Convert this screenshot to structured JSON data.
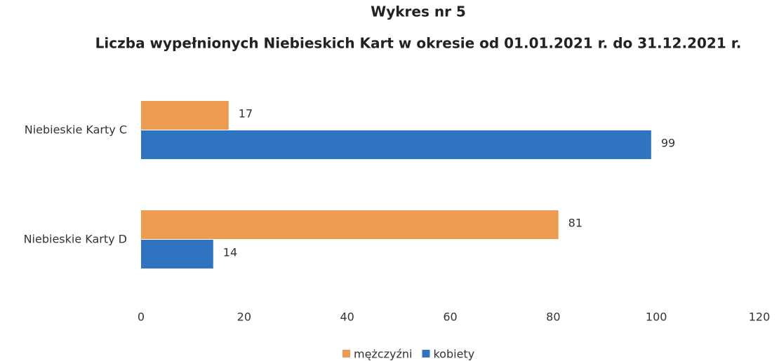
{
  "chart_data": {
    "type": "bar",
    "orientation": "horizontal",
    "title": "Wykres nr 5",
    "subtitle": "Liczba wypełnionych Niebieskich Kart w okresie od 01.01.2021 r. do 31.12.2021 r.",
    "categories": [
      "Niebieskie Karty C",
      "Niebieskie Karty D"
    ],
    "series": [
      {
        "name": "mężczyźni",
        "color": "#ed9b4f",
        "values": [
          17,
          81
        ]
      },
      {
        "name": "kobiety",
        "color": "#2e74c0",
        "values": [
          99,
          14
        ]
      }
    ],
    "xlim": [
      0,
      120
    ],
    "xticks": [
      0,
      20,
      40,
      60,
      80,
      100,
      120
    ],
    "grid": false,
    "legend": "bottom"
  }
}
